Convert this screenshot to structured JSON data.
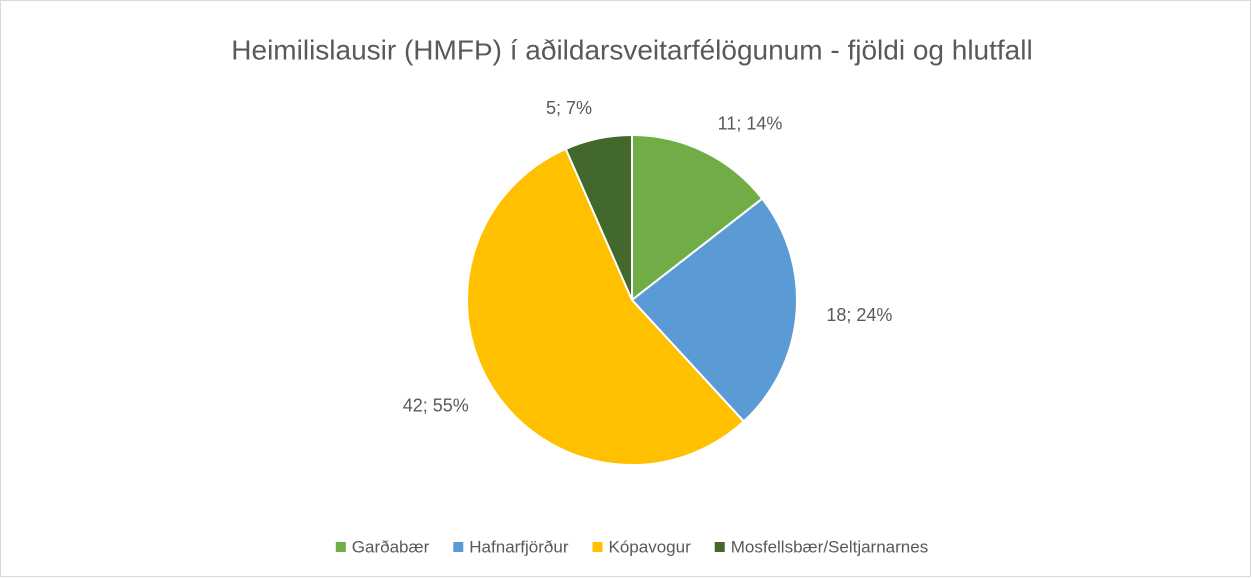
{
  "chart_data": {
    "type": "pie",
    "title": "Heimilislausir (HMFÞ) í aðildarsveitarfélögunum - fjöldi og hlutfall",
    "categories": [
      "Garðabær",
      "Hafnarfjörður",
      "Kópavogur",
      "Mosfellsbær/Seltjarnarnes"
    ],
    "values": [
      11,
      18,
      42,
      5
    ],
    "value_labels": [
      "11; 14%",
      "18; 24%",
      "42; 55%",
      "5; 7%"
    ],
    "colors": [
      "#70ad47",
      "#5b9bd5",
      "#ffc000",
      "#43682b"
    ],
    "legend": "bottom"
  }
}
